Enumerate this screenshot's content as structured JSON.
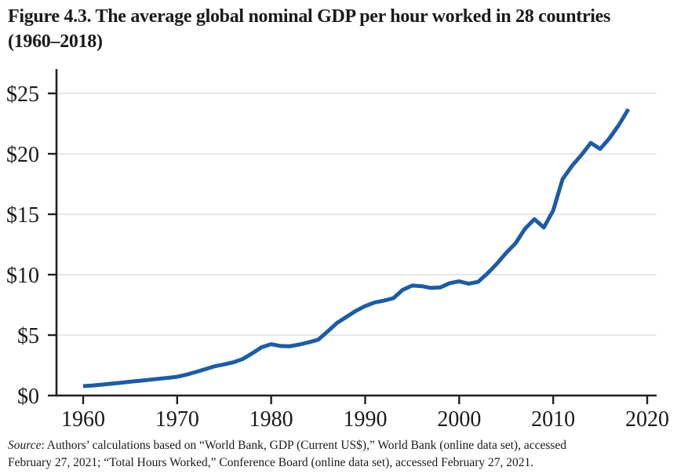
{
  "figure": {
    "title_line1": "Figure 4.3. The average global nominal GDP per hour worked in 28 countries",
    "title_line2": "(1960–2018)",
    "source_label": "Source",
    "source_line1_rest": ": Authors’ calculations based on “World Bank, GDP (Current US$),” World Bank (online data set), accessed",
    "source_line2": "February 27, 2021; “Total Hours Worked,” Conference Board (online data set), accessed February 27, 2021."
  },
  "colors": {
    "line": "#1a5ca9",
    "axis": "#231f20",
    "grid": "#d9d9d9",
    "text": "#1c191a"
  },
  "chart_data": {
    "type": "line",
    "title": "The average global nominal GDP per hour worked in 28 countries (1960–2018)",
    "xlabel": "",
    "ylabel": "",
    "xlim": [
      1957,
      2021
    ],
    "ylim": [
      0,
      27
    ],
    "grid": "horizontal-only",
    "legend": "none",
    "x_tick_labels": [
      "1960",
      "1970",
      "1980",
      "1990",
      "2000",
      "2010",
      "2020"
    ],
    "x_tick_values": [
      1960,
      1970,
      1980,
      1990,
      2000,
      2010,
      2020
    ],
    "y_tick_labels": [
      "$0",
      "$5",
      "$10",
      "$15",
      "$20",
      "$25"
    ],
    "y_tick_values": [
      0,
      5,
      10,
      15,
      20,
      25
    ],
    "series": [
      {
        "name": "Average global nominal GDP per hour worked (US$)",
        "x": [
          1960,
          1961,
          1962,
          1963,
          1964,
          1965,
          1966,
          1967,
          1968,
          1969,
          1970,
          1971,
          1972,
          1973,
          1974,
          1975,
          1976,
          1977,
          1978,
          1979,
          1980,
          1981,
          1982,
          1983,
          1984,
          1985,
          1986,
          1987,
          1988,
          1989,
          1990,
          1991,
          1992,
          1993,
          1994,
          1995,
          1996,
          1997,
          1998,
          1999,
          2000,
          2001,
          2002,
          2003,
          2004,
          2005,
          2006,
          2007,
          2008,
          2009,
          2010,
          2011,
          2012,
          2013,
          2014,
          2015,
          2016,
          2017,
          2018
        ],
        "values": [
          0.78,
          0.83,
          0.9,
          0.98,
          1.06,
          1.14,
          1.22,
          1.3,
          1.38,
          1.46,
          1.55,
          1.73,
          1.95,
          2.18,
          2.42,
          2.58,
          2.75,
          3.03,
          3.5,
          4.0,
          4.25,
          4.1,
          4.08,
          4.22,
          4.4,
          4.62,
          5.3,
          6.0,
          6.5,
          7.0,
          7.4,
          7.7,
          7.85,
          8.05,
          8.75,
          9.1,
          9.05,
          8.9,
          8.95,
          9.3,
          9.45,
          9.25,
          9.4,
          10.1,
          10.9,
          11.8,
          12.6,
          13.8,
          14.6,
          13.9,
          15.3,
          17.9,
          19.0,
          19.9,
          20.9,
          20.4,
          21.3,
          22.4,
          23.7
        ]
      }
    ]
  }
}
